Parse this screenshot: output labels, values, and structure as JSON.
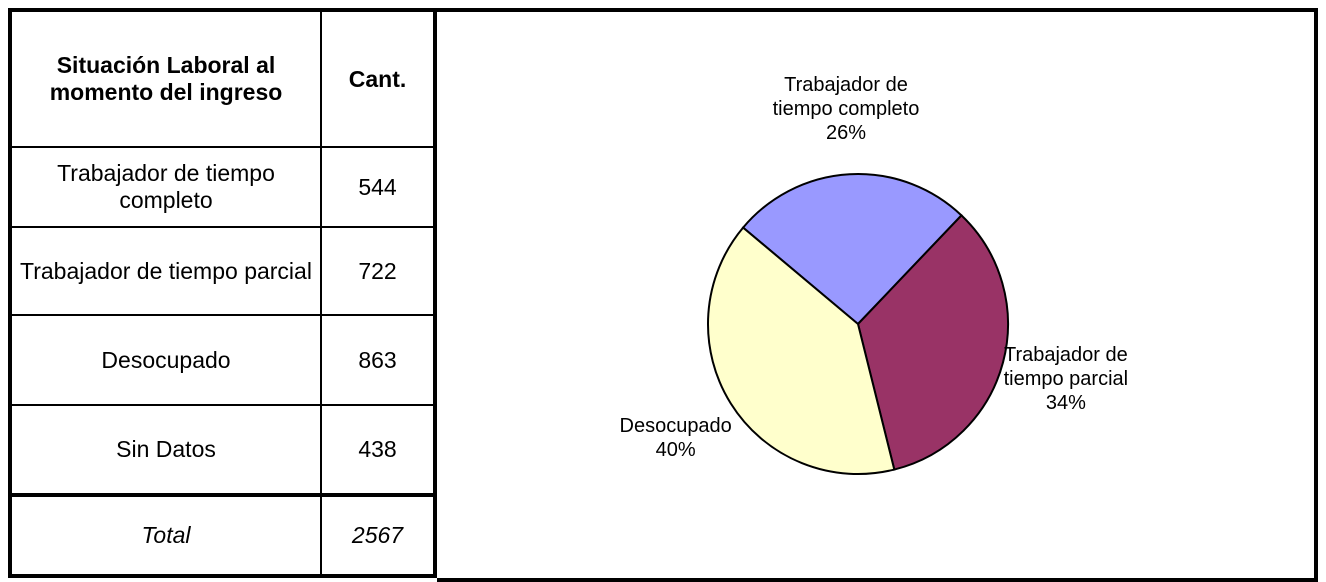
{
  "table": {
    "header": [
      "Situación Laboral al momento del ingreso",
      "Cant."
    ],
    "rows": [
      [
        "Trabajador de tiempo completo",
        "544"
      ],
      [
        "Trabajador de tiempo parcial",
        "722"
      ],
      [
        "Desocupado",
        "863"
      ],
      [
        "Sin Datos",
        "438"
      ]
    ],
    "total": [
      "Total",
      "2567"
    ]
  },
  "chart_data": {
    "type": "pie",
    "categories": [
      "Trabajador de tiempo completo",
      "Trabajador de tiempo parcial",
      "Desocupado"
    ],
    "values": [
      26,
      34,
      40
    ],
    "value_labels": [
      "26%",
      "34%",
      "40%"
    ],
    "colors": [
      "#9999ff",
      "#993366",
      "#ffffcc"
    ]
  }
}
